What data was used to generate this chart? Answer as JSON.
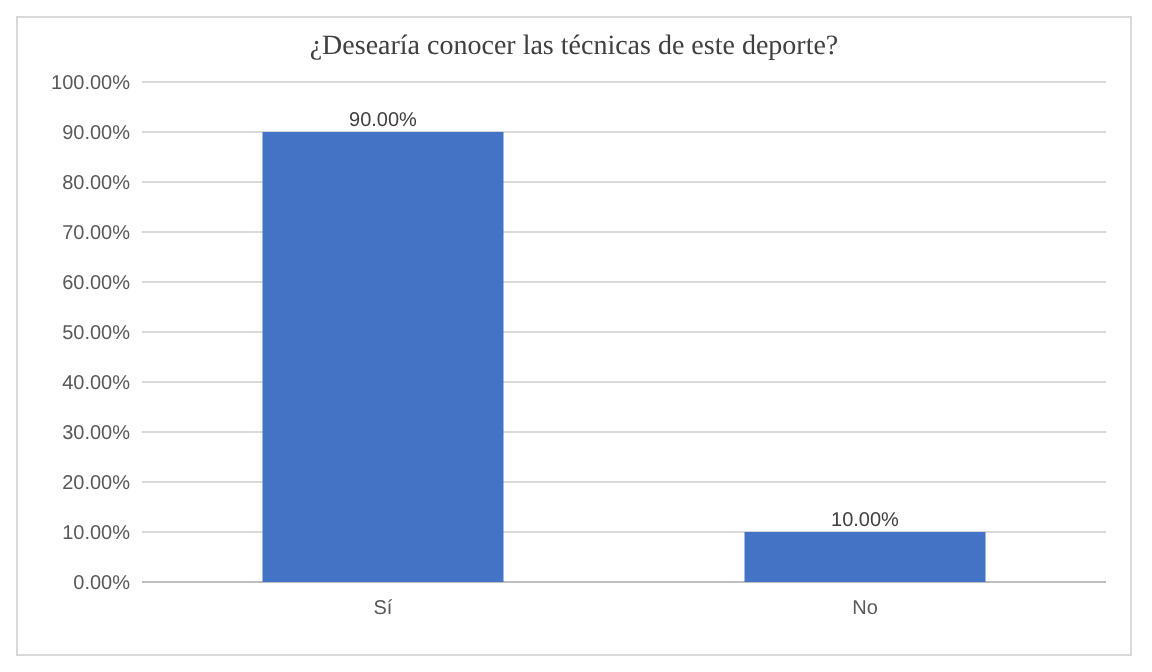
{
  "chart_data": {
    "type": "bar",
    "title": "¿Desearía conocer las técnicas de este deporte?",
    "categories": [
      "Sí",
      "No"
    ],
    "values": [
      90,
      10
    ],
    "color": "#4472c4",
    "value_labels": [
      "90.00%",
      "10.00%"
    ],
    "ylim": [
      0,
      100
    ],
    "yticks": [
      {
        "value": 0,
        "label": "0.00%"
      },
      {
        "value": 10,
        "label": "10.00%"
      },
      {
        "value": 20,
        "label": "20.00%"
      },
      {
        "value": 30,
        "label": "30.00%"
      },
      {
        "value": 40,
        "label": "40.00%"
      },
      {
        "value": 50,
        "label": "50.00%"
      },
      {
        "value": 60,
        "label": "60.00%"
      },
      {
        "value": 70,
        "label": "70.00%"
      },
      {
        "value": 80,
        "label": "80.00%"
      },
      {
        "value": 90,
        "label": "90.00%"
      },
      {
        "value": 100,
        "label": "100.00%"
      }
    ],
    "grid": "y"
  }
}
